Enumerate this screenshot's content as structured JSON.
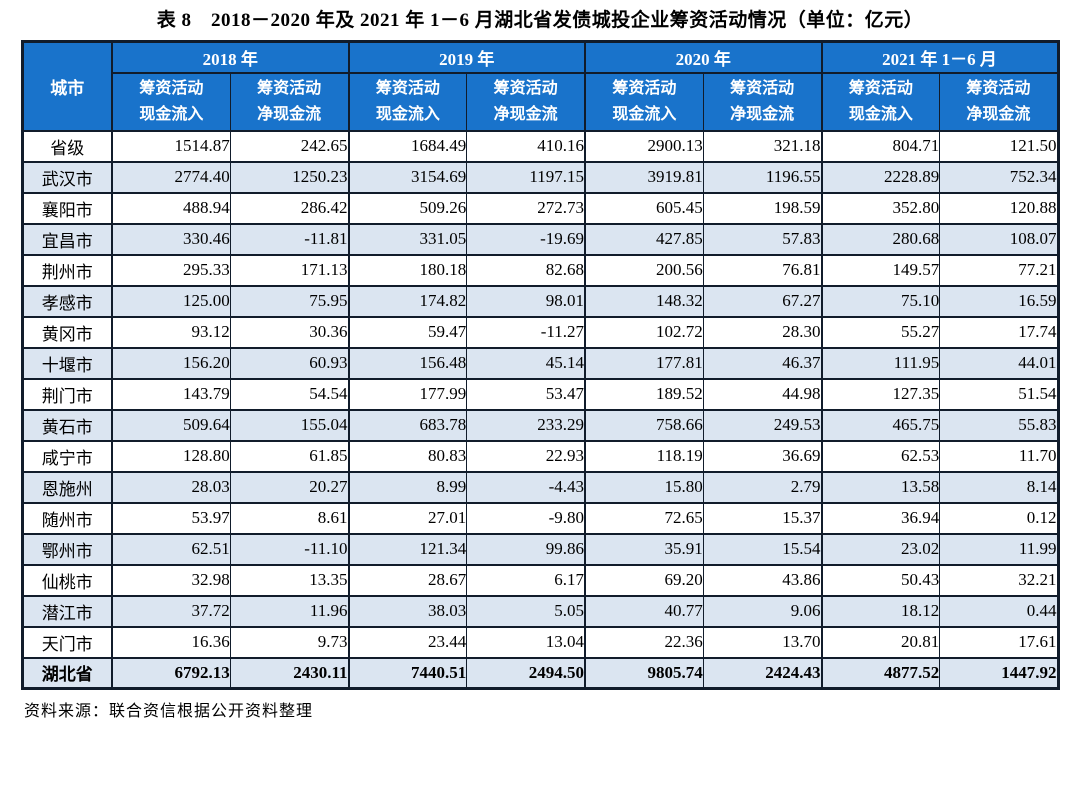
{
  "title": "表 8　2018－2020 年及 2021 年 1－6 月湖北省发债城投企业筹资活动情况（单位：亿元）",
  "source": "资料来源：联合资信根据公开资料整理",
  "colors": {
    "header_bg": "#1973cb",
    "header_text": "#ffffff",
    "alt_row_bg": "#dbe5f1",
    "border": "#111c2b"
  },
  "chart_data": {
    "type": "table",
    "title": "2018-2020年及2021年1-6月湖北省发债城投企业筹资活动情况",
    "unit": "亿元",
    "corner_header": "城市",
    "year_groups": [
      "2018 年",
      "2019 年",
      "2020 年",
      "2021 年 1－6 月"
    ],
    "sub_columns": [
      [
        "筹资活动",
        "现金流入"
      ],
      [
        "筹资活动",
        "净现金流"
      ]
    ],
    "rows": [
      {
        "city": "省级",
        "values": [
          "1514.87",
          "242.65",
          "1684.49",
          "410.16",
          "2900.13",
          "321.18",
          "804.71",
          "121.50"
        ]
      },
      {
        "city": "武汉市",
        "values": [
          "2774.40",
          "1250.23",
          "3154.69",
          "1197.15",
          "3919.81",
          "1196.55",
          "2228.89",
          "752.34"
        ]
      },
      {
        "city": "襄阳市",
        "values": [
          "488.94",
          "286.42",
          "509.26",
          "272.73",
          "605.45",
          "198.59",
          "352.80",
          "120.88"
        ]
      },
      {
        "city": "宜昌市",
        "values": [
          "330.46",
          "-11.81",
          "331.05",
          "-19.69",
          "427.85",
          "57.83",
          "280.68",
          "108.07"
        ]
      },
      {
        "city": "荆州市",
        "values": [
          "295.33",
          "171.13",
          "180.18",
          "82.68",
          "200.56",
          "76.81",
          "149.57",
          "77.21"
        ]
      },
      {
        "city": "孝感市",
        "values": [
          "125.00",
          "75.95",
          "174.82",
          "98.01",
          "148.32",
          "67.27",
          "75.10",
          "16.59"
        ]
      },
      {
        "city": "黄冈市",
        "values": [
          "93.12",
          "30.36",
          "59.47",
          "-11.27",
          "102.72",
          "28.30",
          "55.27",
          "17.74"
        ]
      },
      {
        "city": "十堰市",
        "values": [
          "156.20",
          "60.93",
          "156.48",
          "45.14",
          "177.81",
          "46.37",
          "111.95",
          "44.01"
        ]
      },
      {
        "city": "荆门市",
        "values": [
          "143.79",
          "54.54",
          "177.99",
          "53.47",
          "189.52",
          "44.98",
          "127.35",
          "51.54"
        ]
      },
      {
        "city": "黄石市",
        "values": [
          "509.64",
          "155.04",
          "683.78",
          "233.29",
          "758.66",
          "249.53",
          "465.75",
          "55.83"
        ]
      },
      {
        "city": "咸宁市",
        "values": [
          "128.80",
          "61.85",
          "80.83",
          "22.93",
          "118.19",
          "36.69",
          "62.53",
          "11.70"
        ]
      },
      {
        "city": "恩施州",
        "values": [
          "28.03",
          "20.27",
          "8.99",
          "-4.43",
          "15.80",
          "2.79",
          "13.58",
          "8.14"
        ]
      },
      {
        "city": "随州市",
        "values": [
          "53.97",
          "8.61",
          "27.01",
          "-9.80",
          "72.65",
          "15.37",
          "36.94",
          "0.12"
        ]
      },
      {
        "city": "鄂州市",
        "values": [
          "62.51",
          "-11.10",
          "121.34",
          "99.86",
          "35.91",
          "15.54",
          "23.02",
          "11.99"
        ]
      },
      {
        "city": "仙桃市",
        "values": [
          "32.98",
          "13.35",
          "28.67",
          "6.17",
          "69.20",
          "43.86",
          "50.43",
          "32.21"
        ]
      },
      {
        "city": "潜江市",
        "values": [
          "37.72",
          "11.96",
          "38.03",
          "5.05",
          "40.77",
          "9.06",
          "18.12",
          "0.44"
        ]
      },
      {
        "city": "天门市",
        "values": [
          "16.36",
          "9.73",
          "23.44",
          "13.04",
          "22.36",
          "13.70",
          "20.81",
          "17.61"
        ]
      }
    ],
    "total_row": {
      "city": "湖北省",
      "values": [
        "6792.13",
        "2430.11",
        "7440.51",
        "2494.50",
        "9805.74",
        "2424.43",
        "4877.52",
        "1447.92"
      ]
    }
  }
}
